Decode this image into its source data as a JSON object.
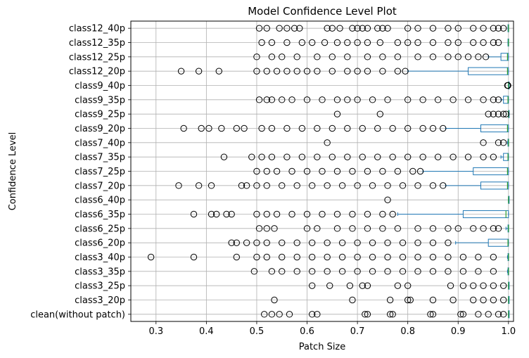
{
  "chart_data": {
    "type": "boxplot",
    "orientation": "horizontal",
    "title": "Model Confidence Level Plot",
    "xlabel": "Patch Size",
    "ylabel": "Confidence Level",
    "xlim": [
      0.25,
      1.01
    ],
    "xticks": [
      0.3,
      0.4,
      0.5,
      0.6,
      0.7,
      0.8,
      0.9,
      1.0
    ],
    "xtick_labels": [
      "0.3",
      "0.4",
      "0.5",
      "0.6",
      "0.7",
      "0.8",
      "0.9",
      "1.0"
    ],
    "grid": true,
    "colors": {
      "box": "#1f77b4",
      "median": "#2ca02c",
      "flier": "#000000",
      "grid": "#b0b0b0"
    },
    "categories": [
      "class12_40p",
      "class12_35p",
      "class12_25p",
      "class12_20p",
      "class9_40p",
      "class9_35p",
      "class9_25p",
      "class9_20p",
      "class7_40p",
      "class7_35p",
      "class7_25p",
      "class7_20p",
      "class6_40p",
      "class6_35p",
      "class6_25p",
      "class6_20p",
      "class3_40p",
      "class3_35p",
      "class3_25p",
      "class3_20p",
      "clean(without patch)"
    ],
    "boxes": [
      {
        "q1": 0.999,
        "median": 1.0,
        "q3": 1.0,
        "whisker_low": 0.999,
        "whisker_high": 1.0,
        "fliers": [
          0.505,
          0.52,
          0.545,
          0.56,
          0.575,
          0.585,
          0.64,
          0.65,
          0.665,
          0.69,
          0.7,
          0.71,
          0.72,
          0.74,
          0.75,
          0.76,
          0.8,
          0.82,
          0.85,
          0.88,
          0.9,
          0.93,
          0.95,
          0.97,
          0.98,
          0.99
        ]
      },
      {
        "q1": 0.999,
        "median": 1.0,
        "q3": 1.0,
        "whisker_low": 0.999,
        "whisker_high": 1.0,
        "fliers": [
          0.51,
          0.53,
          0.56,
          0.59,
          0.61,
          0.635,
          0.66,
          0.68,
          0.7,
          0.72,
          0.745,
          0.78,
          0.8,
          0.82,
          0.85,
          0.88,
          0.9,
          0.93,
          0.95,
          0.97,
          0.98
        ]
      },
      {
        "q1": 0.985,
        "median": 0.998,
        "q3": 1.0,
        "whisker_low": 0.96,
        "whisker_high": 1.0,
        "fliers": [
          0.5,
          0.53,
          0.55,
          0.58,
          0.62,
          0.65,
          0.68,
          0.72,
          0.75,
          0.78,
          0.82,
          0.85,
          0.88,
          0.9,
          0.92,
          0.94,
          0.955
        ]
      },
      {
        "q1": 0.92,
        "median": 0.998,
        "q3": 1.0,
        "whisker_low": 0.8,
        "whisker_high": 1.0,
        "fliers": [
          0.35,
          0.385,
          0.425,
          0.5,
          0.52,
          0.54,
          0.56,
          0.58,
          0.6,
          0.62,
          0.65,
          0.68,
          0.7,
          0.72,
          0.75,
          0.78,
          0.795
        ]
      },
      {
        "q1": 1.0,
        "median": 1.0,
        "q3": 1.0,
        "whisker_low": 1.0,
        "whisker_high": 1.0,
        "fliers": [
          0.998,
          0.999
        ]
      },
      {
        "q1": 0.99,
        "median": 0.999,
        "q3": 1.0,
        "whisker_low": 0.985,
        "whisker_high": 1.0,
        "fliers": [
          0.505,
          0.52,
          0.53,
          0.55,
          0.57,
          0.6,
          0.63,
          0.66,
          0.68,
          0.7,
          0.73,
          0.76,
          0.8,
          0.83,
          0.86,
          0.89,
          0.92,
          0.95,
          0.97,
          0.98
        ]
      },
      {
        "q1": 1.0,
        "median": 1.0,
        "q3": 1.0,
        "whisker_low": 1.0,
        "whisker_high": 1.0,
        "fliers": [
          0.66,
          0.745,
          0.96,
          0.97,
          0.98,
          0.99,
          0.995
        ]
      },
      {
        "q1": 0.945,
        "median": 0.998,
        "q3": 1.0,
        "whisker_low": 0.875,
        "whisker_high": 1.0,
        "fliers": [
          0.355,
          0.39,
          0.405,
          0.43,
          0.46,
          0.475,
          0.51,
          0.53,
          0.56,
          0.59,
          0.62,
          0.65,
          0.68,
          0.71,
          0.74,
          0.77,
          0.8,
          0.83,
          0.85,
          0.87
        ]
      },
      {
        "q1": 0.999,
        "median": 1.0,
        "q3": 1.0,
        "whisker_low": 0.998,
        "whisker_high": 1.0,
        "fliers": [
          0.64,
          0.95,
          0.98,
          0.99
        ]
      },
      {
        "q1": 0.99,
        "median": 0.999,
        "q3": 1.0,
        "whisker_low": 0.985,
        "whisker_high": 1.0,
        "fliers": [
          0.435,
          0.49,
          0.51,
          0.53,
          0.56,
          0.59,
          0.62,
          0.65,
          0.68,
          0.71,
          0.74,
          0.77,
          0.8,
          0.83,
          0.86,
          0.89,
          0.92,
          0.95,
          0.97
        ]
      },
      {
        "q1": 0.93,
        "median": 0.998,
        "q3": 1.0,
        "whisker_low": 0.83,
        "whisker_high": 1.0,
        "fliers": [
          0.5,
          0.52,
          0.54,
          0.57,
          0.6,
          0.63,
          0.66,
          0.69,
          0.72,
          0.75,
          0.78,
          0.81,
          0.825
        ]
      },
      {
        "q1": 0.945,
        "median": 0.998,
        "q3": 1.0,
        "whisker_low": 0.875,
        "whisker_high": 1.0,
        "fliers": [
          0.345,
          0.385,
          0.41,
          0.47,
          0.48,
          0.5,
          0.52,
          0.55,
          0.58,
          0.61,
          0.64,
          0.67,
          0.7,
          0.73,
          0.76,
          0.79,
          0.82,
          0.85,
          0.87
        ]
      },
      {
        "q1": 1.0,
        "median": 1.0,
        "q3": 1.0,
        "whisker_low": 1.0,
        "whisker_high": 1.0,
        "fliers": [
          0.76
        ]
      },
      {
        "q1": 0.91,
        "median": 0.995,
        "q3": 1.0,
        "whisker_low": 0.78,
        "whisker_high": 1.0,
        "fliers": [
          0.375,
          0.41,
          0.42,
          0.44,
          0.45,
          0.5,
          0.52,
          0.54,
          0.57,
          0.6,
          0.63,
          0.66,
          0.69,
          0.72,
          0.75,
          0.77
        ]
      },
      {
        "q1": 0.999,
        "median": 1.0,
        "q3": 1.0,
        "whisker_low": 0.995,
        "whisker_high": 1.0,
        "fliers": [
          0.505,
          0.52,
          0.535,
          0.6,
          0.62,
          0.66,
          0.69,
          0.72,
          0.75,
          0.78,
          0.82,
          0.85,
          0.88,
          0.9,
          0.93,
          0.95,
          0.97,
          0.98
        ]
      },
      {
        "q1": 0.96,
        "median": 0.999,
        "q3": 1.0,
        "whisker_low": 0.895,
        "whisker_high": 1.0,
        "fliers": [
          0.45,
          0.46,
          0.48,
          0.5,
          0.52,
          0.55,
          0.58,
          0.61,
          0.64,
          0.67,
          0.7,
          0.73,
          0.76,
          0.79,
          0.82,
          0.85,
          0.88
        ]
      },
      {
        "q1": 0.999,
        "median": 1.0,
        "q3": 1.0,
        "whisker_low": 0.998,
        "whisker_high": 1.0,
        "fliers": [
          0.29,
          0.375,
          0.46,
          0.5,
          0.52,
          0.55,
          0.58,
          0.61,
          0.64,
          0.67,
          0.7,
          0.73,
          0.76,
          0.79,
          0.82,
          0.85,
          0.88,
          0.91,
          0.94,
          0.97
        ]
      },
      {
        "q1": 0.999,
        "median": 1.0,
        "q3": 1.0,
        "whisker_low": 0.998,
        "whisker_high": 1.0,
        "fliers": [
          0.495,
          0.53,
          0.55,
          0.58,
          0.61,
          0.64,
          0.67,
          0.7,
          0.73,
          0.76,
          0.79,
          0.82,
          0.85,
          0.88,
          0.91,
          0.94,
          0.97
        ]
      },
      {
        "q1": 1.0,
        "median": 1.0,
        "q3": 1.0,
        "whisker_low": 1.0,
        "whisker_high": 1.0,
        "fliers": [
          0.61,
          0.645,
          0.685,
          0.71,
          0.72,
          0.78,
          0.8,
          0.885,
          0.91,
          0.93,
          0.95,
          0.97,
          0.99
        ]
      },
      {
        "q1": 1.0,
        "median": 1.0,
        "q3": 1.0,
        "whisker_low": 1.0,
        "whisker_high": 1.0,
        "fliers": [
          0.535,
          0.69,
          0.765,
          0.8,
          0.805,
          0.85,
          0.89,
          0.93,
          0.95,
          0.97,
          0.99
        ]
      },
      {
        "q1": 1.0,
        "median": 1.0,
        "q3": 1.0,
        "whisker_low": 1.0,
        "whisker_high": 1.0,
        "fliers": [
          0.515,
          0.53,
          0.545,
          0.565,
          0.61,
          0.62,
          0.715,
          0.72,
          0.765,
          0.77,
          0.845,
          0.85,
          0.905,
          0.91,
          0.94,
          0.96,
          0.98,
          0.99
        ]
      }
    ]
  }
}
